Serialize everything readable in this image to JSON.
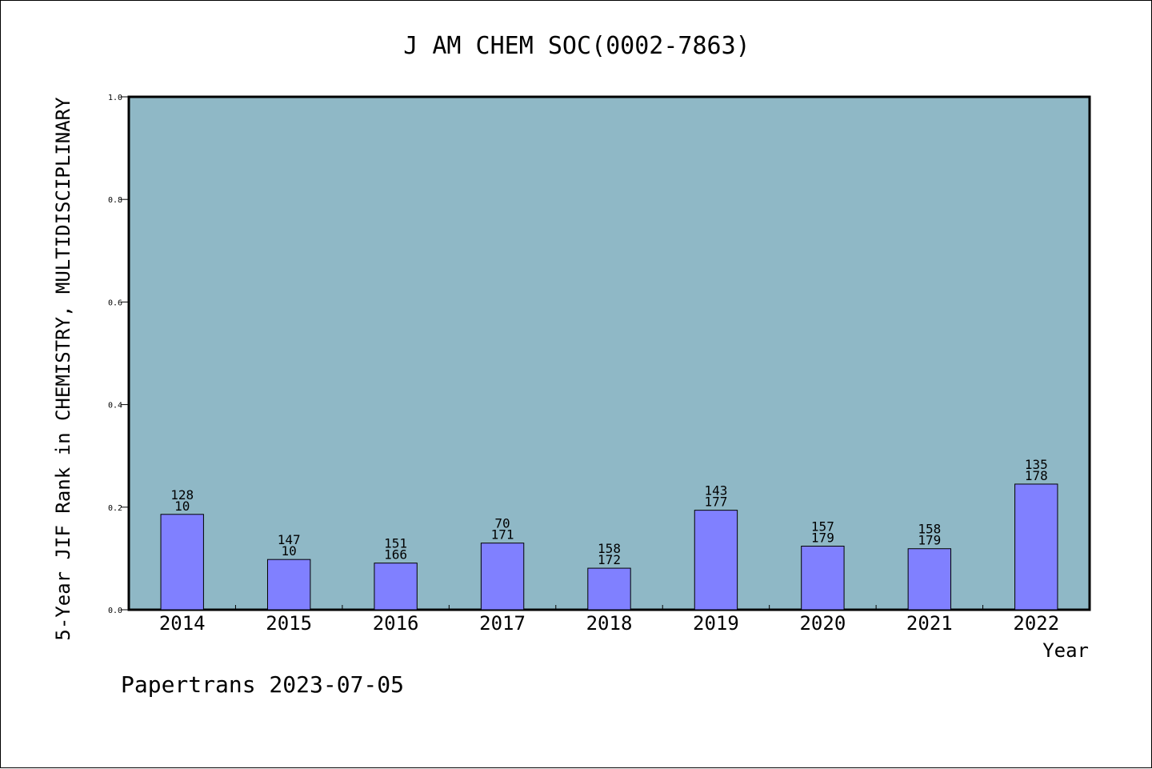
{
  "chart_data": {
    "type": "bar",
    "title": "J AM CHEM SOC(0002-7863)",
    "xlabel": "Year",
    "ylabel": "5-Year JIF Rank in CHEMISTRY, MULTIDISCIPLINARY",
    "ylim": [
      0,
      1.0
    ],
    "yticks": [
      "0.0",
      "0.2",
      "0.4",
      "0.6",
      "0.8",
      "1.0"
    ],
    "categories": [
      "2014",
      "2015",
      "2016",
      "2017",
      "2018",
      "2019",
      "2020",
      "2021",
      "2022"
    ],
    "values": [
      0.186,
      0.098,
      0.091,
      0.13,
      0.081,
      0.194,
      0.124,
      0.119,
      0.245
    ],
    "labels_top": [
      "128",
      "147",
      "151",
      "70",
      "158",
      "143",
      "157",
      "158",
      "135"
    ],
    "labels_bottom": [
      "10",
      "10",
      "166",
      "171",
      "172",
      "177",
      "179",
      "179",
      "178"
    ],
    "grid": false,
    "legend": "none"
  },
  "footer": "Papertrans 2023-07-05",
  "colors": {
    "plot_background": "#8fb8c6",
    "bar_fill": "#8080ff",
    "bar_stroke": "#000000",
    "axis": "#000000",
    "text": "#000000"
  }
}
